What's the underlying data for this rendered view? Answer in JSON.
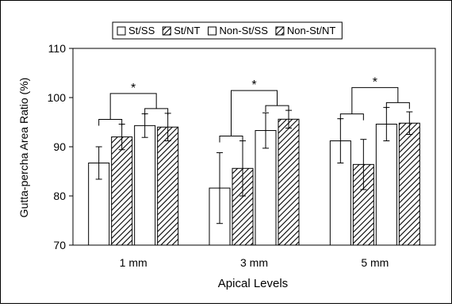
{
  "chart_data": {
    "type": "bar",
    "title": "",
    "xlabel": "Apical Levels",
    "ylabel": "Gutta-percha Area Ratio (%)",
    "ylim": [
      70,
      110
    ],
    "yticks": [
      70,
      80,
      90,
      100,
      110
    ],
    "categories": [
      "1 mm",
      "3 mm",
      "5 mm"
    ],
    "grid": false,
    "legend_position": "top",
    "series": [
      {
        "name": "St/SS",
        "pattern": "plain",
        "values": [
          86.7,
          81.6,
          91.2
        ],
        "errors": [
          3.3,
          7.2,
          4.5
        ]
      },
      {
        "name": "St/NT",
        "pattern": "hatched",
        "values": [
          92.0,
          85.6,
          86.4
        ],
        "errors": [
          2.6,
          5.6,
          5.1
        ]
      },
      {
        "name": "Non-St/SS",
        "pattern": "plain",
        "values": [
          94.3,
          93.3,
          94.6
        ],
        "errors": [
          2.4,
          3.6,
          3.4
        ]
      },
      {
        "name": "Non-St/NT",
        "pattern": "hatched",
        "values": [
          94.0,
          95.6,
          94.8
        ],
        "errors": [
          2.8,
          1.8,
          2.3
        ]
      }
    ],
    "annotations": [
      {
        "text": "*",
        "category": "1 mm"
      },
      {
        "text": "*",
        "category": "3 mm"
      },
      {
        "text": "*",
        "category": "5 mm"
      }
    ]
  }
}
